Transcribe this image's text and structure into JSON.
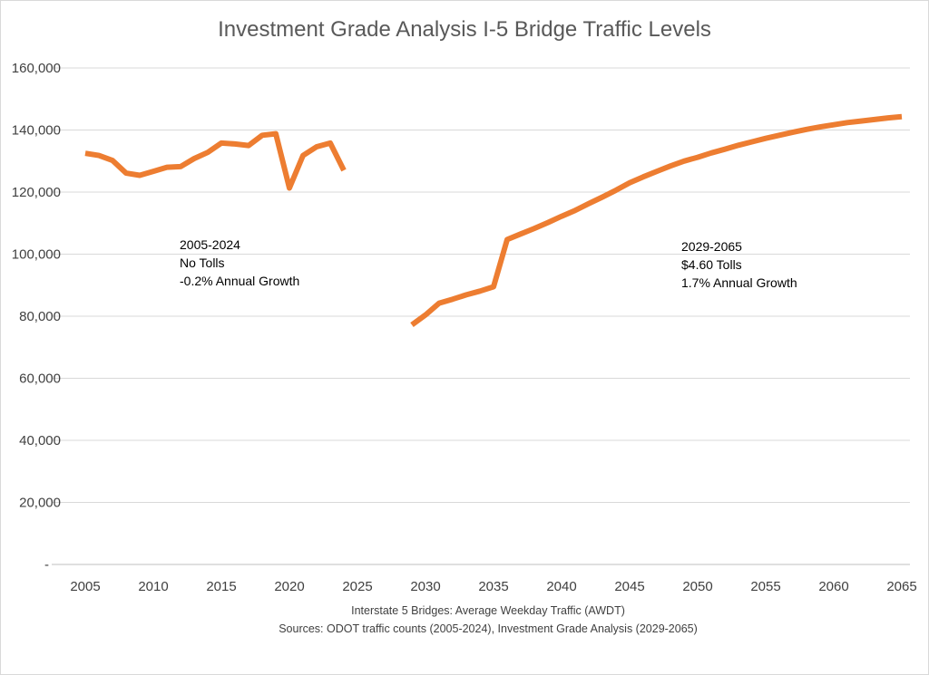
{
  "chart_data": {
    "type": "line",
    "title": "Investment Grade Analysis I-5 Bridge Traffic Levels",
    "xlabel": "",
    "ylabel": "",
    "xlim": [
      2005,
      2065
    ],
    "ylim": [
      0,
      160000
    ],
    "x_ticks": [
      "2005",
      "2010",
      "2015",
      "2020",
      "2025",
      "2030",
      "2035",
      "2040",
      "2045",
      "2050",
      "2055",
      "2060",
      "2065"
    ],
    "y_ticks": [
      "-",
      "20,000",
      "40,000",
      "60,000",
      "80,000",
      "100,000",
      "120,000",
      "140,000",
      "160,000"
    ],
    "grid": true,
    "legend": "none",
    "color": "#ED7D31",
    "series": [
      {
        "x": [
          2005,
          2006,
          2007,
          2008,
          2009,
          2010,
          2011,
          2012,
          2013,
          2014,
          2015,
          2016,
          2017,
          2018,
          2019,
          2020,
          2021,
          2022,
          2023,
          2024
        ],
        "values": [
          132500,
          131800,
          130200,
          126100,
          125400,
          126700,
          128000,
          128200,
          130800,
          132800,
          135800,
          135500,
          135000,
          138300,
          138800,
          121300,
          131800,
          134600,
          135800,
          127000
        ]
      },
      {
        "x": [
          2029,
          2030,
          2031,
          2032,
          2033,
          2034,
          2035,
          2036,
          2037,
          2038,
          2039,
          2040,
          2041,
          2042,
          2043,
          2044,
          2045,
          2046,
          2047,
          2048,
          2049,
          2050,
          2051,
          2052,
          2053,
          2054,
          2055,
          2056,
          2057,
          2058,
          2059,
          2060,
          2061,
          2062,
          2063,
          2064,
          2065
        ],
        "values": [
          77200,
          80400,
          84200,
          85500,
          86900,
          88100,
          89500,
          104700,
          106500,
          108300,
          110200,
          112200,
          114100,
          116300,
          118400,
          120600,
          123000,
          124900,
          126700,
          128400,
          130000,
          131200,
          132600,
          133800,
          135100,
          136200,
          137300,
          138300,
          139300,
          140200,
          141000,
          141700,
          142400,
          142900,
          143400,
          143900,
          144300
        ]
      }
    ],
    "annotations": [
      {
        "lines": [
          "2005-2024",
          "No Tolls",
          "-0.2% Annual Growth"
        ]
      },
      {
        "lines": [
          "2029-2065",
          "$4.60 Tolls",
          "1.7% Annual Growth"
        ]
      }
    ],
    "source_lines": [
      "Interstate 5 Bridges:  Average Weekday Traffic (AWDT)",
      "Sources:   ODOT traffic counts (2005-2024), Investment Grade Analysis (2029-2065)"
    ]
  }
}
